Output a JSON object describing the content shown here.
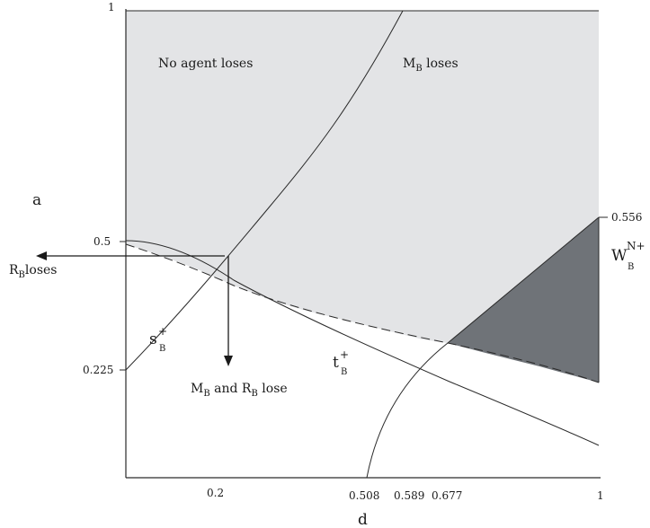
{
  "axes": {
    "x_label": "d",
    "y_label": "a",
    "x_ticks": [
      "0.2",
      "0.508",
      "0.589",
      "0.677",
      "1"
    ],
    "y_ticks": [
      "1",
      "0.5",
      "0.225"
    ],
    "right_tick": "0.556"
  },
  "regions": {
    "no_agent": "No agent loses",
    "mb_loses_main": "M",
    "mb_loses_sub": "B",
    "mb_loses_rest": " loses",
    "rb_loses_main": "R",
    "rb_loses_sub": "B",
    "rb_loses_rest": "loses",
    "both_m": "M",
    "both_m_sub": "B",
    "both_mid": " and R",
    "both_r_sub": "B",
    "both_rest": " lose"
  },
  "curves": {
    "s_main": "s",
    "s_sup": "+",
    "s_sub": "B",
    "t_main": "t",
    "t_sup": "+",
    "t_sub": "B",
    "w_main": "W",
    "w_sup": "N+",
    "w_sub": "B"
  },
  "colors": {
    "light_region": "#e3e4e6",
    "dark_region": "#6f7378",
    "line": "#2a2a2a"
  }
}
